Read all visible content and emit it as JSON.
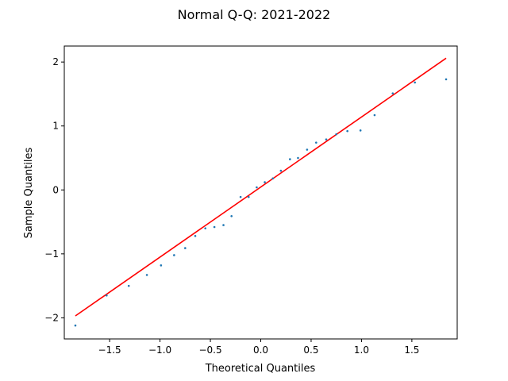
{
  "chart_data": {
    "type": "scatter",
    "title": "Normal Q-Q: 2021-2022",
    "xlabel": "Theoretical Quantiles",
    "ylabel": "Sample Quantiles",
    "xlim": [
      -1.95,
      1.95
    ],
    "ylim": [
      -2.33,
      2.25
    ],
    "grid": false,
    "x_ticks": [
      -1.5,
      -1.0,
      -0.5,
      0.0,
      0.5,
      1.0,
      1.5
    ],
    "x_tick_labels": [
      "−1.5",
      "−1.0",
      "−0.5",
      "0.0",
      "0.5",
      "1.0",
      "1.5"
    ],
    "y_ticks": [
      -2,
      -1,
      0,
      1,
      2
    ],
    "y_tick_labels": [
      "−2",
      "−1",
      "0",
      "1",
      "2"
    ],
    "point_color": "#1f77b4",
    "line_color": "#ff0000",
    "series": [
      {
        "kind": "points",
        "x": [
          -1.84,
          -1.53,
          -1.31,
          -1.13,
          -0.99,
          -0.86,
          -0.75,
          -0.65,
          -0.55,
          -0.46,
          -0.37,
          -0.29,
          -0.2,
          -0.12,
          -0.04,
          0.04,
          0.12,
          0.2,
          0.29,
          0.37,
          0.46,
          0.55,
          0.65,
          0.75,
          0.86,
          0.99,
          1.13,
          1.31,
          1.53,
          1.84
        ],
        "y": [
          -2.12,
          -1.65,
          -1.5,
          -1.33,
          -1.18,
          -1.02,
          -0.91,
          -0.72,
          -0.6,
          -0.58,
          -0.55,
          -0.41,
          -0.11,
          -0.11,
          0.04,
          0.12,
          0.18,
          0.3,
          0.48,
          0.5,
          0.63,
          0.74,
          0.79,
          0.87,
          0.92,
          0.93,
          1.17,
          1.51,
          1.68,
          1.73
        ]
      },
      {
        "kind": "line",
        "x": [
          -1.84,
          1.84
        ],
        "y": [
          -1.97,
          2.06
        ]
      }
    ]
  }
}
